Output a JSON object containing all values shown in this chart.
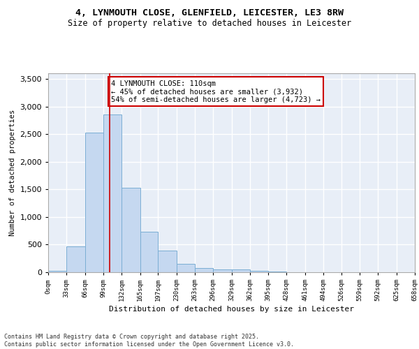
{
  "title_line1": "4, LYNMOUTH CLOSE, GLENFIELD, LEICESTER, LE3 8RW",
  "title_line2": "Size of property relative to detached houses in Leicester",
  "xlabel": "Distribution of detached houses by size in Leicester",
  "ylabel": "Number of detached properties",
  "bar_values": [
    20,
    470,
    2530,
    2860,
    1530,
    730,
    390,
    155,
    80,
    55,
    55,
    30,
    10,
    0,
    0,
    0,
    0,
    0,
    0,
    0
  ],
  "bin_edges": [
    0,
    33,
    66,
    99,
    132,
    165,
    197,
    230,
    263,
    296,
    329,
    362,
    395,
    428,
    461,
    494,
    526,
    559,
    592,
    625,
    658
  ],
  "tick_labels": [
    "0sqm",
    "33sqm",
    "66sqm",
    "99sqm",
    "132sqm",
    "165sqm",
    "197sqm",
    "230sqm",
    "263sqm",
    "296sqm",
    "329sqm",
    "362sqm",
    "395sqm",
    "428sqm",
    "461sqm",
    "494sqm",
    "526sqm",
    "559sqm",
    "592sqm",
    "625sqm",
    "658sqm"
  ],
  "bar_color": "#c5d8f0",
  "bar_edge_color": "#7baed4",
  "background_color": "#e8eef7",
  "grid_color": "#ffffff",
  "vline_x": 110,
  "vline_color": "#cc0000",
  "annotation_text": "4 LYNMOUTH CLOSE: 110sqm\n← 45% of detached houses are smaller (3,932)\n54% of semi-detached houses are larger (4,723) →",
  "annotation_box_color": "#ffffff",
  "annotation_box_edge": "#cc0000",
  "ylim": [
    0,
    3600
  ],
  "yticks": [
    0,
    500,
    1000,
    1500,
    2000,
    2500,
    3000,
    3500
  ],
  "footer_line1": "Contains HM Land Registry data © Crown copyright and database right 2025.",
  "footer_line2": "Contains public sector information licensed under the Open Government Licence v3.0."
}
